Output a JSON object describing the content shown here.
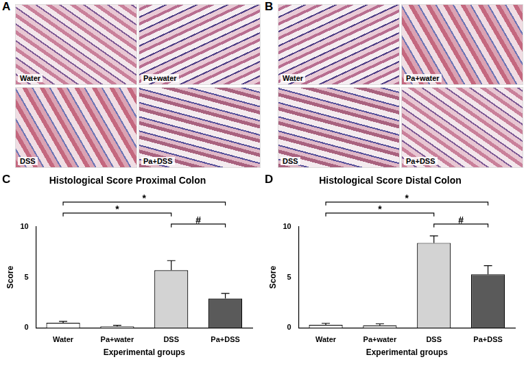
{
  "image_panels": [
    {
      "panel": "A",
      "images": [
        "Water",
        "Pa+water",
        "DSS",
        "Pa+DSS"
      ]
    },
    {
      "panel": "B",
      "images": [
        "Water",
        "Pa+water",
        "DSS",
        "Pa+DSS"
      ]
    }
  ],
  "chart_data": [
    {
      "panel": "C",
      "type": "bar",
      "title": "Histological Score Proximal Colon",
      "x_label": "Experimental groups",
      "y_label": "Score",
      "categories": [
        "Water",
        "Pa+water",
        "DSS",
        "Pa+DSS"
      ],
      "values": [
        0.5,
        0.15,
        5.7,
        2.9
      ],
      "errors": [
        0.15,
        0.1,
        0.95,
        0.5
      ],
      "colors": [
        "#ffffff",
        "#ffffff",
        "#d3d3d3",
        "#5a5a5a"
      ],
      "ylim": [
        0,
        10
      ],
      "yticks": [
        0,
        5,
        10
      ],
      "grid": false,
      "comparisons": [
        {
          "from": "Water",
          "to": "Pa+DSS",
          "label": "*"
        },
        {
          "from": "Water",
          "to": "DSS",
          "label": "*"
        },
        {
          "from": "DSS",
          "to": "Pa+DSS",
          "label": "#"
        }
      ]
    },
    {
      "panel": "D",
      "type": "bar",
      "title": "Histological Score Distal Colon",
      "x_label": "Experimental groups",
      "y_label": "Score",
      "categories": [
        "Water",
        "Pa+water",
        "DSS",
        "Pa+DSS"
      ],
      "values": [
        0.3,
        0.25,
        8.4,
        5.3
      ],
      "errors": [
        0.15,
        0.15,
        0.7,
        0.85
      ],
      "colors": [
        "#ffffff",
        "#ffffff",
        "#d3d3d3",
        "#5a5a5a"
      ],
      "ylim": [
        0,
        10
      ],
      "yticks": [
        0,
        5,
        10
      ],
      "grid": false,
      "comparisons": [
        {
          "from": "Water",
          "to": "Pa+DSS",
          "label": "*"
        },
        {
          "from": "Water",
          "to": "DSS",
          "label": "*"
        },
        {
          "from": "DSS",
          "to": "Pa+DSS",
          "label": "#"
        }
      ]
    }
  ]
}
